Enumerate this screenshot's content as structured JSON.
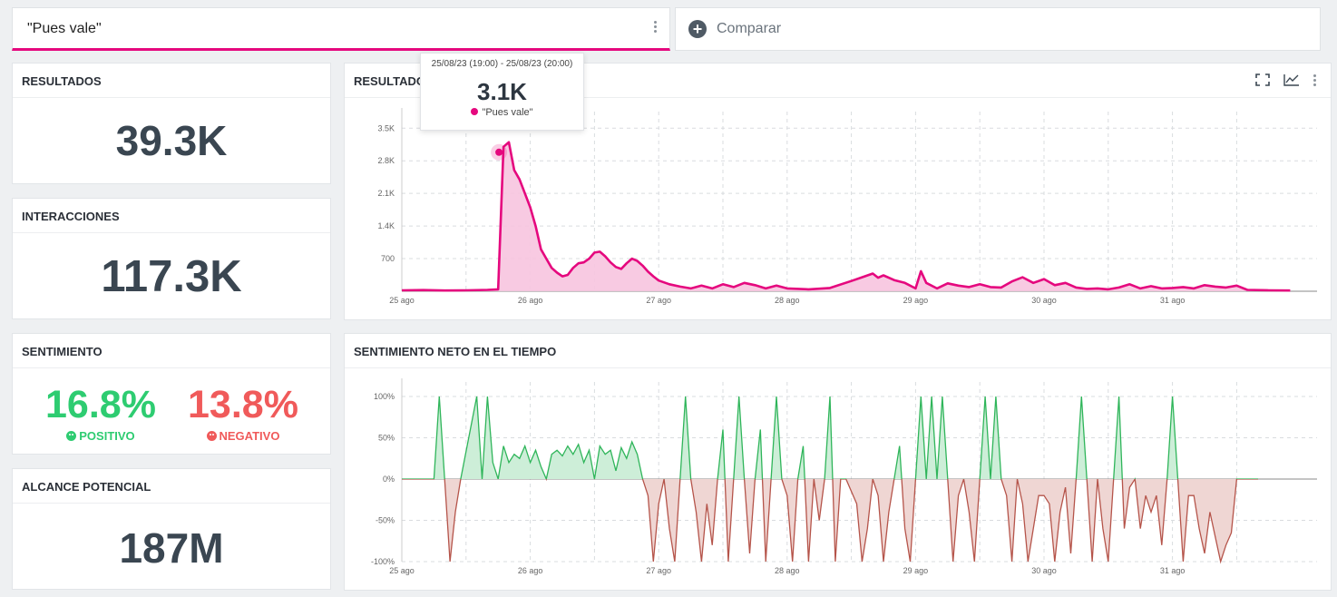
{
  "search": {
    "query": "\"Pues vale\""
  },
  "compare": {
    "label": "Comparar"
  },
  "kpis": {
    "results": {
      "title": "RESULTADOS",
      "value": "39.3K"
    },
    "interactions": {
      "title": "INTERACCIONES",
      "value": "117.3K"
    },
    "sentiment": {
      "title": "SENTIMIENTO",
      "positive": {
        "value": "16.8%",
        "label": "POSITIVO"
      },
      "negative": {
        "value": "13.8%",
        "label": "NEGATIVO"
      }
    },
    "reach": {
      "title": "ALCANCE POTENCIAL",
      "value": "187M"
    }
  },
  "colors": {
    "accent": "#e5087e",
    "positive": "#2ecc71",
    "negative": "#f05a5a",
    "neg_line": "#b5544a",
    "pos_line": "#2fb55a"
  },
  "tooltip": {
    "range": "25/08/23 (19:00) - 25/08/23 (20:00)",
    "value": "3.1K",
    "series": "\"Pues vale\""
  },
  "chart_data": [
    {
      "type": "area",
      "title": "RESULTADOS",
      "x_tick_labels": [
        "25 ago",
        "26 ago",
        "27 ago",
        "28 ago",
        "29 ago",
        "30 ago",
        "31 ago"
      ],
      "y_tick_labels": [
        "700",
        "1.4K",
        "2.1K",
        "2.8K",
        "3.5K"
      ],
      "ylim": [
        0,
        3700
      ],
      "grid": true,
      "series": [
        {
          "name": "\"Pues vale\"",
          "x_unit": "hours since 25 ago 00:00",
          "points": [
            [
              0,
              20
            ],
            [
              4,
              25
            ],
            [
              8,
              15
            ],
            [
              12,
              20
            ],
            [
              16,
              30
            ],
            [
              18,
              40
            ],
            [
              19,
              3100
            ],
            [
              20,
              3200
            ],
            [
              21,
              2600
            ],
            [
              22,
              2400
            ],
            [
              23,
              2100
            ],
            [
              24,
              1800
            ],
            [
              25,
              1400
            ],
            [
              26,
              900
            ],
            [
              27,
              700
            ],
            [
              28,
              500
            ],
            [
              29,
              400
            ],
            [
              30,
              320
            ],
            [
              31,
              350
            ],
            [
              32,
              500
            ],
            [
              33,
              600
            ],
            [
              34,
              620
            ],
            [
              35,
              700
            ],
            [
              36,
              830
            ],
            [
              37,
              850
            ],
            [
              38,
              750
            ],
            [
              39,
              620
            ],
            [
              40,
              520
            ],
            [
              41,
              480
            ],
            [
              42,
              600
            ],
            [
              43,
              700
            ],
            [
              44,
              650
            ],
            [
              45,
              550
            ],
            [
              46,
              420
            ],
            [
              47,
              320
            ],
            [
              48,
              230
            ],
            [
              50,
              150
            ],
            [
              52,
              100
            ],
            [
              54,
              60
            ],
            [
              56,
              120
            ],
            [
              58,
              60
            ],
            [
              60,
              150
            ],
            [
              62,
              90
            ],
            [
              64,
              180
            ],
            [
              66,
              130
            ],
            [
              68,
              60
            ],
            [
              70,
              120
            ],
            [
              72,
              60
            ],
            [
              76,
              40
            ],
            [
              80,
              70
            ],
            [
              84,
              220
            ],
            [
              86,
              300
            ],
            [
              88,
              380
            ],
            [
              89,
              290
            ],
            [
              90,
              340
            ],
            [
              92,
              240
            ],
            [
              94,
              180
            ],
            [
              96,
              60
            ],
            [
              97,
              430
            ],
            [
              98,
              180
            ],
            [
              100,
              60
            ],
            [
              102,
              170
            ],
            [
              104,
              120
            ],
            [
              106,
              90
            ],
            [
              108,
              150
            ],
            [
              110,
              90
            ],
            [
              112,
              80
            ],
            [
              114,
              210
            ],
            [
              116,
              300
            ],
            [
              118,
              180
            ],
            [
              120,
              260
            ],
            [
              122,
              130
            ],
            [
              124,
              180
            ],
            [
              126,
              80
            ],
            [
              128,
              50
            ],
            [
              130,
              60
            ],
            [
              132,
              40
            ],
            [
              134,
              80
            ],
            [
              136,
              150
            ],
            [
              138,
              60
            ],
            [
              140,
              110
            ],
            [
              142,
              60
            ],
            [
              144,
              70
            ],
            [
              146,
              90
            ],
            [
              148,
              60
            ],
            [
              150,
              130
            ],
            [
              152,
              100
            ],
            [
              154,
              80
            ],
            [
              156,
              120
            ],
            [
              158,
              30
            ],
            [
              162,
              20
            ],
            [
              166,
              15
            ]
          ]
        }
      ]
    },
    {
      "type": "area",
      "title": "SENTIMIENTO NETO EN EL TIEMPO",
      "x_tick_labels": [
        "25 ago",
        "26 ago",
        "27 ago",
        "28 ago",
        "29 ago",
        "30 ago",
        "31 ago"
      ],
      "y_tick_labels": [
        "100%",
        "50%",
        "0%",
        "-50%",
        "-100%"
      ],
      "ylim": [
        -100,
        100
      ],
      "grid": true,
      "series": [
        {
          "name": "net sentiment",
          "x_unit": "hours since 25 ago 00:00",
          "points": [
            [
              0,
              0
            ],
            [
              6,
              0
            ],
            [
              7,
              100
            ],
            [
              8,
              0
            ],
            [
              9,
              -100
            ],
            [
              10,
              -40
            ],
            [
              11,
              0
            ],
            [
              14,
              100
            ],
            [
              15,
              0
            ],
            [
              16,
              100
            ],
            [
              17,
              20
            ],
            [
              18,
              0
            ],
            [
              19,
              40
            ],
            [
              20,
              20
            ],
            [
              21,
              30
            ],
            [
              22,
              25
            ],
            [
              23,
              40
            ],
            [
              24,
              20
            ],
            [
              25,
              35
            ],
            [
              26,
              15
            ],
            [
              27,
              0
            ],
            [
              28,
              30
            ],
            [
              29,
              35
            ],
            [
              30,
              28
            ],
            [
              31,
              40
            ],
            [
              32,
              30
            ],
            [
              33,
              42
            ],
            [
              34,
              20
            ],
            [
              35,
              35
            ],
            [
              36,
              0
            ],
            [
              37,
              40
            ],
            [
              38,
              30
            ],
            [
              39,
              35
            ],
            [
              40,
              10
            ],
            [
              41,
              38
            ],
            [
              42,
              25
            ],
            [
              43,
              45
            ],
            [
              44,
              30
            ],
            [
              45,
              0
            ],
            [
              46,
              -20
            ],
            [
              47,
              -100
            ],
            [
              48,
              -30
            ],
            [
              49,
              0
            ],
            [
              50,
              -60
            ],
            [
              51,
              -100
            ],
            [
              52,
              0
            ],
            [
              53,
              100
            ],
            [
              54,
              0
            ],
            [
              55,
              -40
            ],
            [
              56,
              -100
            ],
            [
              57,
              -30
            ],
            [
              58,
              -80
            ],
            [
              59,
              0
            ],
            [
              60,
              60
            ],
            [
              61,
              -100
            ],
            [
              62,
              0
            ],
            [
              63,
              100
            ],
            [
              64,
              0
            ],
            [
              65,
              -90
            ],
            [
              66,
              0
            ],
            [
              67,
              60
            ],
            [
              68,
              -100
            ],
            [
              69,
              0
            ],
            [
              70,
              100
            ],
            [
              71,
              0
            ],
            [
              72,
              -20
            ],
            [
              73,
              -100
            ],
            [
              74,
              0
            ],
            [
              75,
              40
            ],
            [
              76,
              -100
            ],
            [
              77,
              0
            ],
            [
              78,
              -50
            ],
            [
              79,
              0
            ],
            [
              80,
              100
            ],
            [
              81,
              -100
            ],
            [
              82,
              0
            ],
            [
              83,
              0
            ],
            [
              85,
              -30
            ],
            [
              86,
              -100
            ],
            [
              87,
              -60
            ],
            [
              88,
              0
            ],
            [
              89,
              -20
            ],
            [
              90,
              -100
            ],
            [
              91,
              -40
            ],
            [
              92,
              0
            ],
            [
              93,
              40
            ],
            [
              94,
              -60
            ],
            [
              95,
              -100
            ],
            [
              96,
              0
            ],
            [
              97,
              100
            ],
            [
              98,
              0
            ],
            [
              99,
              100
            ],
            [
              100,
              0
            ],
            [
              101,
              100
            ],
            [
              102,
              0
            ],
            [
              103,
              -100
            ],
            [
              104,
              -20
            ],
            [
              105,
              0
            ],
            [
              106,
              -40
            ],
            [
              107,
              -100
            ],
            [
              108,
              0
            ],
            [
              109,
              100
            ],
            [
              110,
              0
            ],
            [
              111,
              100
            ],
            [
              112,
              0
            ],
            [
              113,
              -20
            ],
            [
              114,
              -100
            ],
            [
              115,
              0
            ],
            [
              116,
              -30
            ],
            [
              117,
              -100
            ],
            [
              118,
              -60
            ],
            [
              119,
              -20
            ],
            [
              120,
              -20
            ],
            [
              121,
              -30
            ],
            [
              122,
              -100
            ],
            [
              123,
              -40
            ],
            [
              124,
              -10
            ],
            [
              125,
              -90
            ],
            [
              126,
              0
            ],
            [
              127,
              100
            ],
            [
              128,
              0
            ],
            [
              129,
              -100
            ],
            [
              130,
              0
            ],
            [
              131,
              -60
            ],
            [
              132,
              -100
            ],
            [
              133,
              0
            ],
            [
              134,
              100
            ],
            [
              135,
              -60
            ],
            [
              136,
              -10
            ],
            [
              137,
              0
            ],
            [
              138,
              -60
            ],
            [
              139,
              -20
            ],
            [
              140,
              -40
            ],
            [
              141,
              -20
            ],
            [
              142,
              -80
            ],
            [
              143,
              0
            ],
            [
              144,
              100
            ],
            [
              145,
              0
            ],
            [
              146,
              -100
            ],
            [
              147,
              -20
            ],
            [
              148,
              -20
            ],
            [
              149,
              -60
            ],
            [
              150,
              -90
            ],
            [
              151,
              -40
            ],
            [
              152,
              -70
            ],
            [
              153,
              -100
            ],
            [
              154,
              -80
            ],
            [
              155,
              -65
            ],
            [
              156,
              0
            ],
            [
              160,
              0
            ]
          ]
        }
      ]
    }
  ]
}
